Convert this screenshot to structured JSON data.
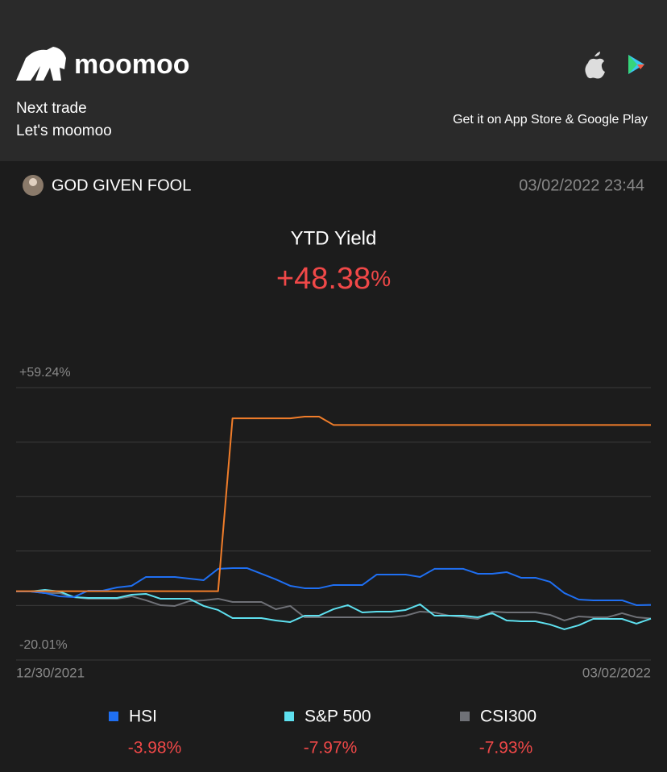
{
  "header": {
    "brand": "moomoo",
    "tagline": [
      "Next trade",
      "Let's moomoo"
    ],
    "store_text": "Get it on App Store & Google Play"
  },
  "user": {
    "name": "GOD GIVEN FOOL",
    "timestamp": "03/02/2022 23:44"
  },
  "yield": {
    "label": "YTD Yield",
    "value": "+48.38",
    "unit": "%"
  },
  "chart_data": {
    "type": "line",
    "categories": [
      "12/30/2021",
      null,
      null,
      null,
      null,
      null,
      null,
      null,
      null,
      null,
      null,
      null,
      null,
      null,
      null,
      null,
      null,
      null,
      null,
      null,
      null,
      null,
      null,
      null,
      null,
      null,
      null,
      null,
      null,
      null,
      null,
      null,
      null,
      null,
      null,
      null,
      null,
      null,
      null,
      null,
      null,
      null,
      null,
      null,
      "03/02/2022"
    ],
    "ylim": [
      -20.01,
      59.24
    ],
    "yticks": [
      {
        "value": 59.24,
        "label": "+59.24%"
      },
      {
        "value": -20.01,
        "label": "-20.01%"
      }
    ],
    "grid": true,
    "series": [
      {
        "color": "#f07d2a",
        "values": [
          0,
          0,
          0,
          0,
          0,
          0,
          0,
          0,
          0,
          0,
          0,
          0,
          0,
          0,
          0,
          50.3,
          50.3,
          50.3,
          50.3,
          50.3,
          50.8,
          50.8,
          48.38,
          48.38,
          48.38,
          48.38,
          48.38,
          48.38,
          48.38,
          48.38,
          48.38,
          48.38,
          48.38,
          48.38,
          48.38,
          48.38,
          48.38,
          48.38,
          48.38,
          48.38,
          48.38,
          48.38,
          48.38,
          48.38,
          48.38
        ]
      },
      {
        "name": "HSI",
        "color": "#1f6ff2",
        "end_label": "-3.98%",
        "values": [
          -0.07,
          -0.07,
          -0.54,
          -1.48,
          -1.71,
          0.16,
          0.16,
          1.1,
          1.57,
          4.15,
          4.15,
          4.15,
          3.68,
          3.21,
          6.5,
          6.73,
          6.73,
          5.09,
          3.45,
          1.57,
          0.87,
          0.87,
          1.81,
          1.81,
          1.81,
          4.85,
          4.85,
          4.85,
          4.15,
          6.5,
          6.5,
          6.5,
          5.09,
          5.09,
          5.56,
          3.92,
          3.92,
          2.74,
          -0.54,
          -2.42,
          -2.65,
          -2.65,
          -2.65,
          -4.06,
          -3.98
        ]
      },
      {
        "name": "S&P 500",
        "color": "#5ee0ef",
        "end_label": "-7.97%",
        "values": [
          -0.07,
          -0.07,
          0.4,
          -0.07,
          -1.71,
          -1.95,
          -1.95,
          -1.95,
          -1.01,
          -0.77,
          -2.18,
          -2.18,
          -2.18,
          -4.29,
          -5.46,
          -7.81,
          -7.81,
          -7.81,
          -8.51,
          -8.98,
          -7.11,
          -7.11,
          -5.23,
          -4.06,
          -6.17,
          -5.93,
          -5.93,
          -5.46,
          -3.82,
          -7.11,
          -7.11,
          -7.11,
          -7.57,
          -6.4,
          -8.51,
          -8.75,
          -8.75,
          -9.68,
          -11.09,
          -9.92,
          -8.05,
          -8.05,
          -8.05,
          -9.45,
          -7.97
        ]
      },
      {
        "name": "CSI300",
        "color": "#6f7177",
        "end_label": "-7.93%",
        "values": [
          -0.07,
          -0.07,
          -0.54,
          -0.54,
          -1.71,
          -2.18,
          -2.18,
          -2.18,
          -1.48,
          -2.65,
          -4.06,
          -4.29,
          -2.89,
          -2.65,
          -2.18,
          -3.12,
          -3.12,
          -3.12,
          -5.23,
          -4.29,
          -7.57,
          -7.57,
          -7.57,
          -7.57,
          -7.57,
          -7.57,
          -7.57,
          -7.11,
          -5.93,
          -6.17,
          -7.11,
          -7.57,
          -8.05,
          -5.93,
          -6.17,
          -6.17,
          -6.17,
          -6.87,
          -8.51,
          -7.34,
          -7.57,
          -7.57,
          -6.4,
          -7.57,
          -7.93
        ]
      }
    ]
  }
}
